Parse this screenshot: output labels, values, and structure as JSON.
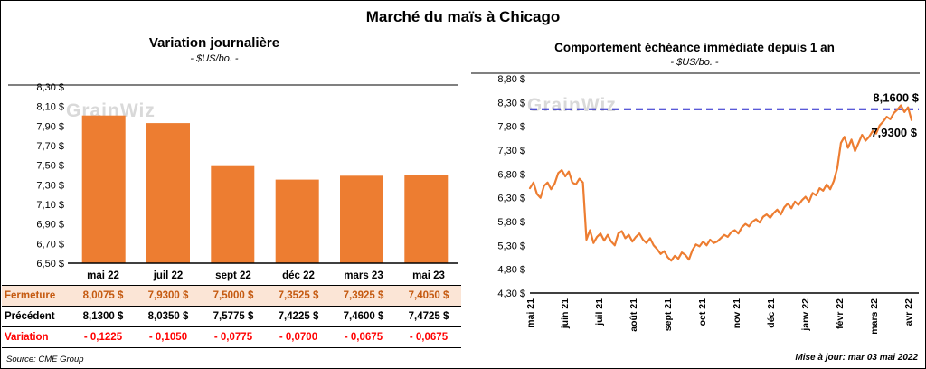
{
  "page": {
    "title": "Marché du maïs à Chicago",
    "source": "Source: CME Group",
    "updated": "Mise à jour: mar 03 mai 2022",
    "watermark": "GrainWiz"
  },
  "colors": {
    "bar_orange": "#ED7D31",
    "table_highlight_bg": "#FBE5D6",
    "table_highlight_text": "#C55A11",
    "negative_red": "#FF0000",
    "reference_blue": "#2222CC",
    "watermark_gray": "#D9D9D9"
  },
  "chart_data": [
    {
      "type": "bar",
      "title": "Variation journalière",
      "subtitle": "- $US/bo. -",
      "categories": [
        "mai 22",
        "juil 22",
        "sept 22",
        "déc 22",
        "mars 23",
        "mai 23"
      ],
      "values": [
        8.0075,
        7.93,
        7.5,
        7.3525,
        7.3925,
        7.405
      ],
      "ylim": [
        6.5,
        8.3
      ],
      "ytick_step": 0.2,
      "ytick_labels": [
        "6,50 $",
        "6,70 $",
        "6,90 $",
        "7,10 $",
        "7,30 $",
        "7,50 $",
        "7,70 $",
        "7,90 $",
        "8,10 $",
        "8,30 $"
      ],
      "bar_color": "#ED7D31",
      "grid": false,
      "legend": false
    },
    {
      "type": "line",
      "title": "Comportement échéance immédiate depuis 1 an",
      "subtitle": "- $US/bo. -",
      "x_labels": [
        "mai 21",
        "juin 21",
        "juil 21",
        "août 21",
        "sept 21",
        "oct 21",
        "nov 21",
        "déc 21",
        "janv 22",
        "févr 22",
        "mars 22",
        "avr 22"
      ],
      "values": [
        6.5,
        6.62,
        6.38,
        6.3,
        6.55,
        6.62,
        6.48,
        6.6,
        6.82,
        6.88,
        6.75,
        6.85,
        6.62,
        6.58,
        6.7,
        6.62,
        5.42,
        5.62,
        5.35,
        5.48,
        5.55,
        5.4,
        5.52,
        5.38,
        5.3,
        5.55,
        5.6,
        5.45,
        5.52,
        5.38,
        5.48,
        5.55,
        5.42,
        5.35,
        5.45,
        5.3,
        5.22,
        5.12,
        5.18,
        5.05,
        4.98,
        5.08,
        5.02,
        5.15,
        5.1,
        5.0,
        5.2,
        5.32,
        5.28,
        5.38,
        5.3,
        5.42,
        5.35,
        5.38,
        5.45,
        5.52,
        5.48,
        5.58,
        5.62,
        5.55,
        5.68,
        5.75,
        5.7,
        5.8,
        5.85,
        5.78,
        5.9,
        5.95,
        5.88,
        5.98,
        6.05,
        5.95,
        6.1,
        6.18,
        6.08,
        6.22,
        6.15,
        6.25,
        6.32,
        6.22,
        6.4,
        6.35,
        6.5,
        6.45,
        6.58,
        6.48,
        6.65,
        6.92,
        7.45,
        7.58,
        7.35,
        7.52,
        7.28,
        7.45,
        7.62,
        7.5,
        7.58,
        7.7,
        7.65,
        7.82,
        7.9,
        8.0,
        7.95,
        8.08,
        8.15,
        8.24,
        8.1,
        8.2,
        7.93
      ],
      "ylim": [
        4.3,
        8.8
      ],
      "ytick_step": 0.5,
      "ytick_labels": [
        "4,30 $",
        "4,80 $",
        "5,30 $",
        "5,80 $",
        "6,30 $",
        "6,80 $",
        "7,30 $",
        "7,80 $",
        "8,30 $",
        "8,80 $"
      ],
      "line_color": "#ED7D31",
      "reference_line": {
        "value": 8.16,
        "label": "8,1600 $",
        "color": "#2222CC"
      },
      "last_point_label": "7,9300 $",
      "grid": false,
      "legend": false
    }
  ],
  "table": {
    "rows": [
      {
        "label": "Fermeture",
        "values": [
          "8,0075  $",
          "7,9300  $",
          "7,5000  $",
          "7,3525  $",
          "7,3925  $",
          "7,4050  $"
        ]
      },
      {
        "label": "Précédent",
        "values": [
          "8,1300  $",
          "8,0350  $",
          "7,5775  $",
          "7,4225  $",
          "7,4600  $",
          "7,4725  $"
        ]
      },
      {
        "label": "Variation",
        "values": [
          "- 0,1225",
          "- 0,1050",
          "- 0,0775",
          "- 0,0700",
          "- 0,0675",
          "- 0,0675"
        ]
      }
    ]
  }
}
